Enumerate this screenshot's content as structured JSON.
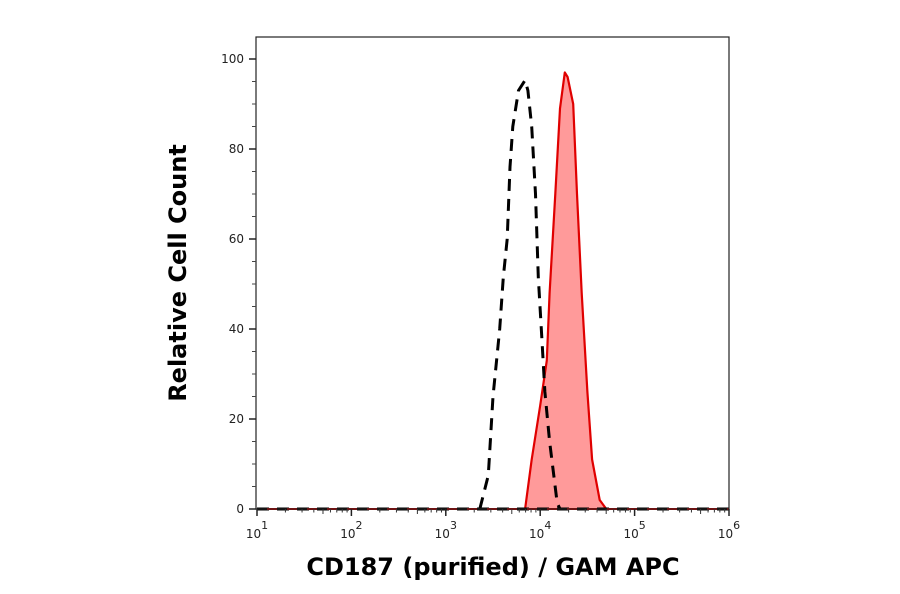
{
  "chart_data": {
    "type": "area",
    "title": "",
    "xlabel": "CD187 (purified) / GAM APC",
    "ylabel": "Relative Cell Count",
    "xscale": "log",
    "xlim": [
      10,
      1000000
    ],
    "ylim": [
      0,
      100
    ],
    "grid": false,
    "x_ticks": [
      {
        "base": "10",
        "exp": "1"
      },
      {
        "base": "10",
        "exp": "2"
      },
      {
        "base": "10",
        "exp": "3"
      },
      {
        "base": "10",
        "exp": "4"
      },
      {
        "base": "10",
        "exp": "5"
      },
      {
        "base": "10",
        "exp": "6"
      }
    ],
    "y_ticks": [
      "0",
      "20",
      "40",
      "60",
      "80",
      "100"
    ],
    "series": [
      {
        "style": "dashed",
        "color": "#000000",
        "filled": false,
        "x": [
          2290,
          2820,
          3160,
          3720,
          4070,
          4470,
          4790,
          5130,
          5890,
          6920,
          7410,
          8130,
          8910,
          9550,
          10470,
          11220,
          12590,
          15140,
          16220
        ],
        "y": [
          0,
          7.5,
          25,
          40,
          51.5,
          60,
          76,
          85,
          93,
          95.3,
          93,
          85,
          70,
          51.5,
          37,
          26,
          15,
          1.3,
          0
        ]
      },
      {
        "style": "solid",
        "color": "#e00000",
        "fill": "#ff9a9a",
        "filled": true,
        "x": [
          6920,
          8130,
          10000,
          11750,
          12590,
          14450,
          16220,
          18200,
          19500,
          22390,
          24550,
          27540,
          31620,
          35480,
          42660,
          50120
        ],
        "y": [
          0,
          11,
          23,
          33,
          48,
          70,
          89,
          97,
          96,
          90,
          70,
          48,
          26,
          11,
          2,
          0
        ]
      }
    ]
  }
}
